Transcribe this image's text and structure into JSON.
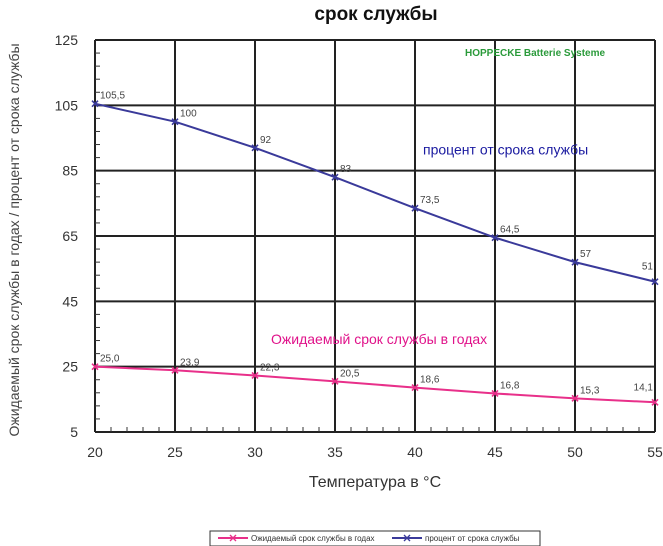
{
  "chart_data": {
    "type": "line",
    "title": "срок службы",
    "watermark": "HOPPECKE Batterie Systeme",
    "xlabel": "Температура в °C",
    "ylabel": "Ожидаемый срок службы в годах / процент от срока службы",
    "x": [
      20,
      25,
      30,
      35,
      40,
      45,
      50,
      55
    ],
    "xlim": [
      20,
      55
    ],
    "ylim": [
      5,
      125
    ],
    "x_ticks": [
      20,
      25,
      30,
      35,
      40,
      45,
      50,
      55
    ],
    "y_ticks": [
      5,
      25,
      45,
      65,
      85,
      105,
      125
    ],
    "grid": true,
    "legend_position": "bottom",
    "series": [
      {
        "name": "Ожидаемый срок службы в годах",
        "color": "#e8308a",
        "marker": "x",
        "values": [
          25.0,
          23.9,
          22.3,
          20.5,
          18.6,
          16.8,
          15.3,
          14.1
        ],
        "labels": [
          "25,0",
          "23,9",
          "22,3",
          "20,5",
          "18,6",
          "16,8",
          "15,3",
          "14,1"
        ]
      },
      {
        "name": "процент от срока службы",
        "color": "#3a3a9a",
        "marker": "x",
        "values": [
          105.5,
          100,
          92,
          83,
          73.5,
          64.5,
          57,
          51
        ],
        "labels": [
          "105,5",
          "100",
          "92",
          "83",
          "73,5",
          "64,5",
          "57",
          "51"
        ]
      }
    ],
    "annotations": [
      {
        "text": "процент от срока службы",
        "color": "#1a1aa0",
        "x": 40.5,
        "y": 90
      },
      {
        "text": "Ожидаемый срок службы в годах",
        "color": "#e0128a",
        "x": 31,
        "y": 32
      }
    ],
    "colors": {
      "watermark": "#2a9a3a",
      "grid": "#222222",
      "axis_text": "#333333"
    }
  }
}
